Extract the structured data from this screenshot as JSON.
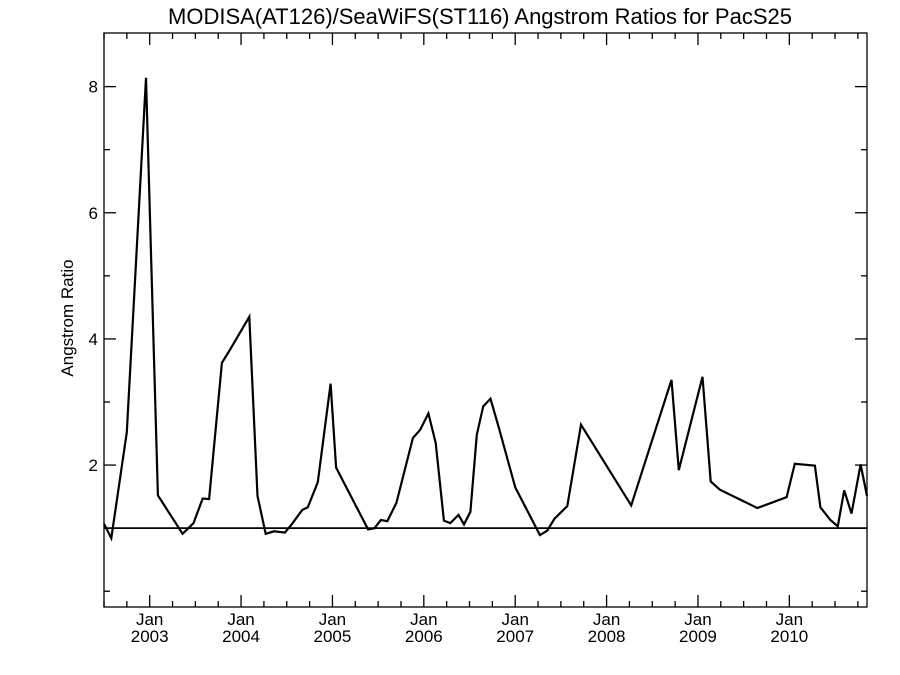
{
  "chart_data": {
    "type": "line",
    "title": "MODISA(AT126)/SeaWiFS(ST116)  Angstrom Ratios for PacS25",
    "ylabel": "Angstrom Ratio",
    "xlabel": "",
    "ylim": [
      -0.25,
      8.85
    ],
    "xlim": [
      2002.5,
      2010.85
    ],
    "yticks": [
      2,
      4,
      6,
      8
    ],
    "xticks": [
      {
        "x": 2003.0,
        "line1": "Jan",
        "line2": "2003"
      },
      {
        "x": 2004.0,
        "line1": "Jan",
        "line2": "2004"
      },
      {
        "x": 2005.0,
        "line1": "Jan",
        "line2": "2005"
      },
      {
        "x": 2006.0,
        "line1": "Jan",
        "line2": "2006"
      },
      {
        "x": 2007.0,
        "line1": "Jan",
        "line2": "2007"
      },
      {
        "x": 2008.0,
        "line1": "Jan",
        "line2": "2008"
      },
      {
        "x": 2009.0,
        "line1": "Jan",
        "line2": "2009"
      },
      {
        "x": 2010.0,
        "line1": "Jan",
        "line2": "2010"
      }
    ],
    "reference_line": 1.0,
    "grid": false,
    "series": [
      {
        "x": [
          2002.5,
          2002.58,
          2002.75,
          2002.96,
          2003.09,
          2003.36,
          2003.48,
          2003.58,
          2003.65,
          2003.79,
          2003.88,
          2004.09,
          2004.18,
          2004.27,
          2004.36,
          2004.48,
          2004.56,
          2004.67,
          2004.73,
          2004.84,
          2004.98,
          2005.04,
          2005.39,
          2005.46,
          2005.53,
          2005.6,
          2005.7,
          2005.88,
          2005.96,
          2006.05,
          2006.13,
          2006.22,
          2006.29,
          2006.38,
          2006.44,
          2006.51,
          2006.58,
          2006.65,
          2006.73,
          2006.82,
          2007.0,
          2007.27,
          2007.35,
          2007.43,
          2007.57,
          2007.72,
          2008.27,
          2008.71,
          2008.79,
          2009.05,
          2009.14,
          2009.24,
          2009.65,
          2009.97,
          2010.06,
          2010.28,
          2010.34,
          2010.45,
          2010.53,
          2010.6,
          2010.68,
          2010.78,
          2010.85
        ],
        "y": [
          1.07,
          0.84,
          2.52,
          8.14,
          1.52,
          0.91,
          1.08,
          1.47,
          1.46,
          3.62,
          3.83,
          4.35,
          1.51,
          0.91,
          0.95,
          0.93,
          1.07,
          1.29,
          1.33,
          1.73,
          3.29,
          1.96,
          0.98,
          1.0,
          1.13,
          1.11,
          1.4,
          2.43,
          2.56,
          2.82,
          2.35,
          1.12,
          1.08,
          1.21,
          1.06,
          1.26,
          2.48,
          2.93,
          3.05,
          2.6,
          1.65,
          0.89,
          0.96,
          1.15,
          1.35,
          2.64,
          1.36,
          3.35,
          1.92,
          3.4,
          1.74,
          1.61,
          1.32,
          1.49,
          2.02,
          1.99,
          1.33,
          1.13,
          1.03,
          1.6,
          1.23,
          2.01,
          1.51
        ]
      }
    ]
  }
}
